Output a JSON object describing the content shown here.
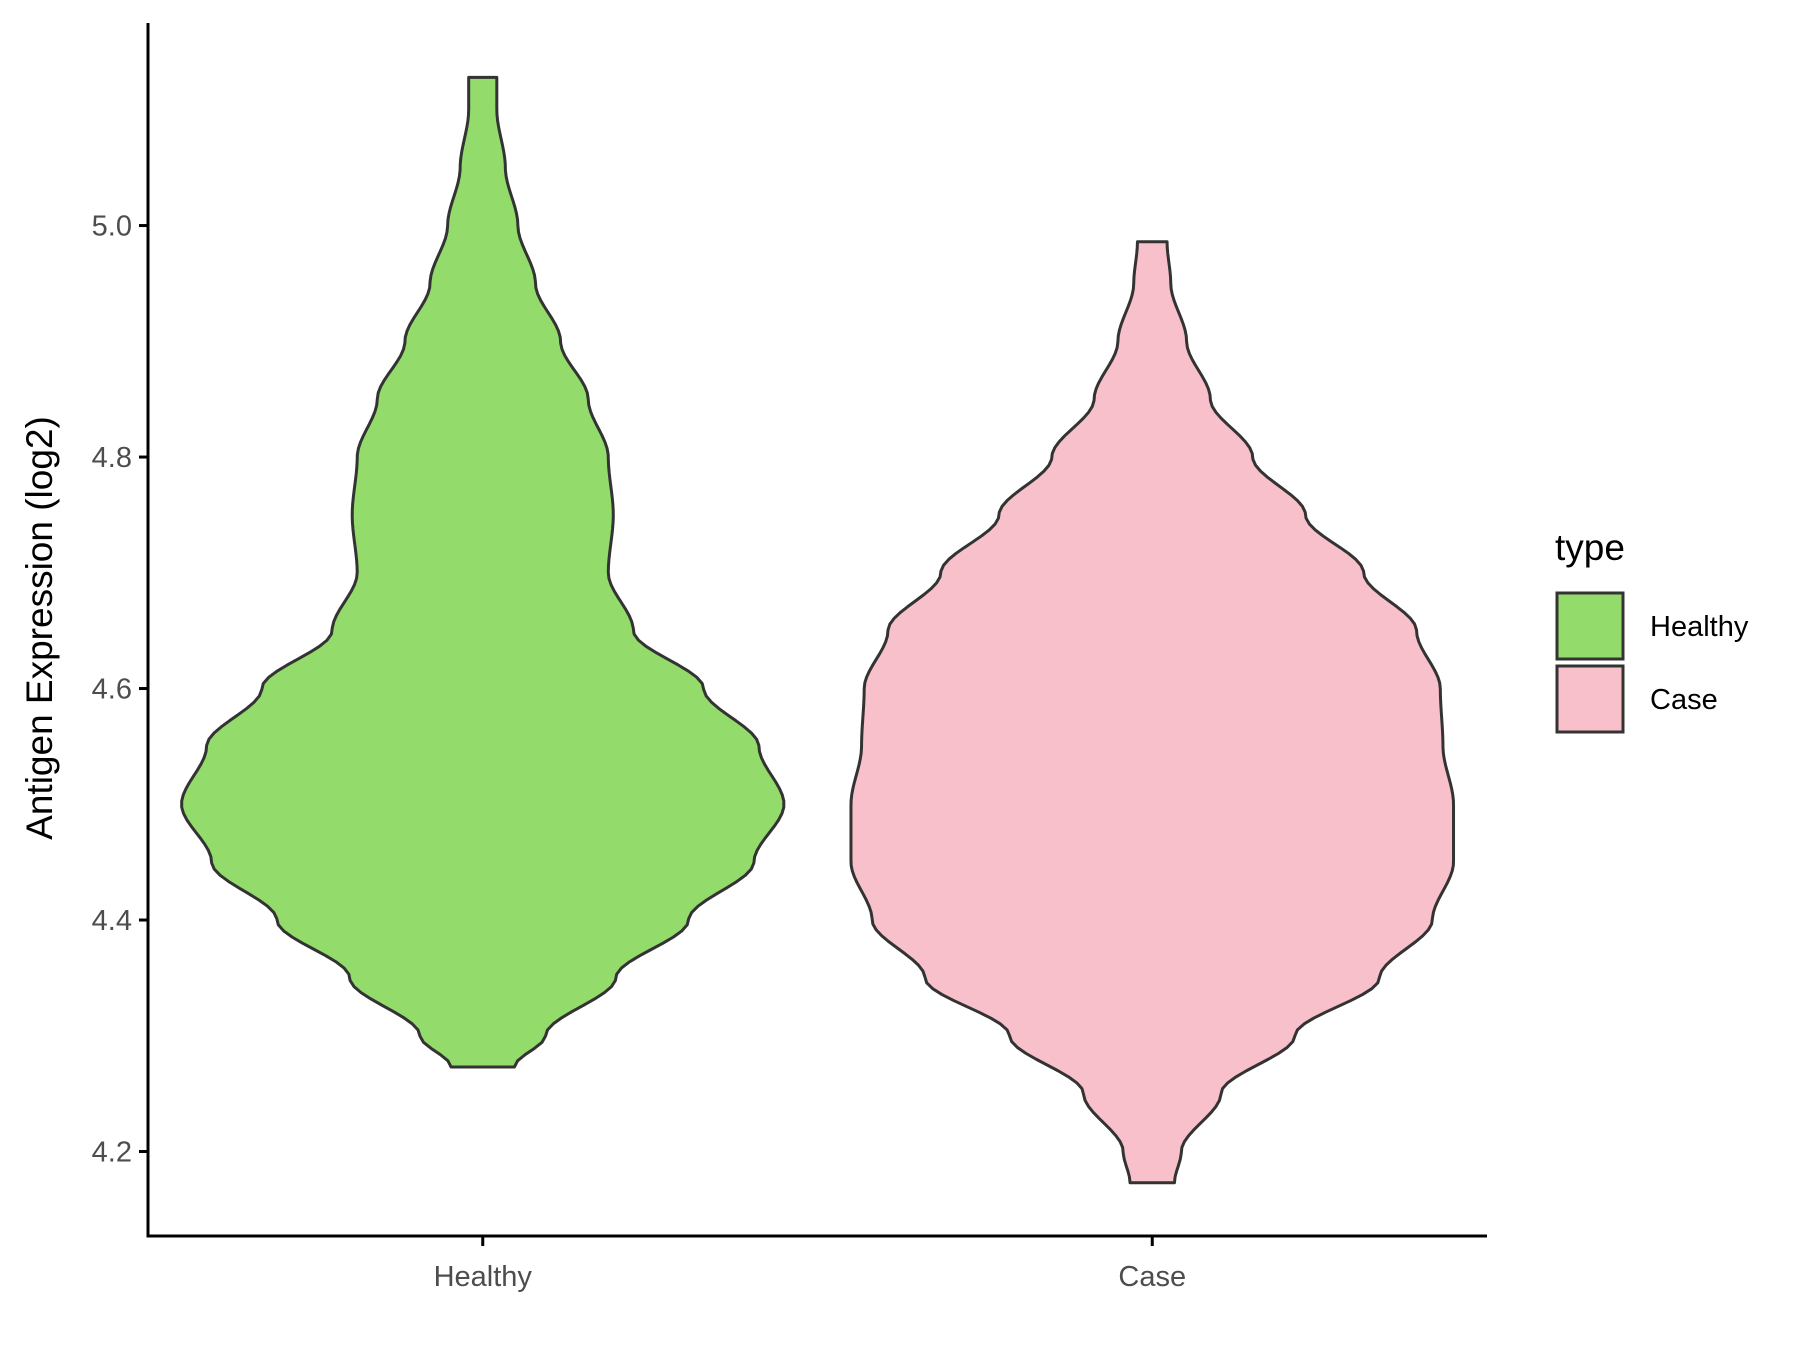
{
  "chart_data": {
    "type": "violin",
    "title": "",
    "xlabel": "",
    "ylabel": "Antigen Expression (log2)",
    "categories": [
      "Healthy",
      "Case"
    ],
    "ylim": [
      4.127,
      5.175
    ],
    "yticks": [
      4.2,
      4.4,
      4.6,
      4.8,
      5.0
    ],
    "ytick_labels": [
      "4.2",
      "4.4",
      "4.6",
      "4.8",
      "5.0"
    ],
    "grid": false,
    "legend": {
      "title": "type",
      "position": "right",
      "entries": [
        {
          "label": "Healthy",
          "color": "#93DC6C"
        },
        {
          "label": "Case",
          "color": "#F8C0CB"
        }
      ]
    },
    "series": [
      {
        "category": "Healthy",
        "color": "#93DC6C",
        "min": 4.273,
        "max": 5.128,
        "density_profile": [
          [
            4.273,
            0.063
          ],
          [
            4.3,
            0.125
          ],
          [
            4.35,
            0.265
          ],
          [
            4.4,
            0.41
          ],
          [
            4.45,
            0.54
          ],
          [
            4.5,
            0.6
          ],
          [
            4.55,
            0.55
          ],
          [
            4.6,
            0.44
          ],
          [
            4.65,
            0.3
          ],
          [
            4.7,
            0.25
          ],
          [
            4.75,
            0.26
          ],
          [
            4.8,
            0.25
          ],
          [
            4.85,
            0.21
          ],
          [
            4.9,
            0.155
          ],
          [
            4.95,
            0.105
          ],
          [
            5.0,
            0.07
          ],
          [
            5.05,
            0.045
          ],
          [
            5.1,
            0.028
          ],
          [
            5.128,
            0.028
          ]
        ]
      },
      {
        "category": "Case",
        "color": "#F8C0CB",
        "min": 4.173,
        "max": 4.986,
        "density_profile": [
          [
            4.173,
            0.042
          ],
          [
            4.2,
            0.055
          ],
          [
            4.25,
            0.13
          ],
          [
            4.3,
            0.27
          ],
          [
            4.35,
            0.43
          ],
          [
            4.4,
            0.53
          ],
          [
            4.45,
            0.57
          ],
          [
            4.5,
            0.57
          ],
          [
            4.55,
            0.55
          ],
          [
            4.6,
            0.545
          ],
          [
            4.65,
            0.5
          ],
          [
            4.7,
            0.4
          ],
          [
            4.75,
            0.29
          ],
          [
            4.8,
            0.19
          ],
          [
            4.85,
            0.11
          ],
          [
            4.9,
            0.065
          ],
          [
            4.95,
            0.035
          ],
          [
            4.986,
            0.028
          ]
        ]
      }
    ]
  }
}
